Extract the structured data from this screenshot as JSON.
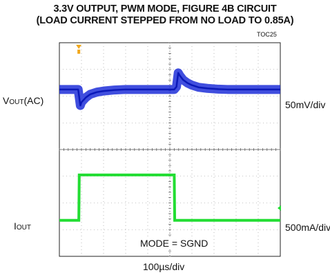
{
  "title_line1": "3.3V OUTPUT, PWM MODE, FIGURE 4B CIRCUIT",
  "title_line2": "(LOAD CURRENT STEPPED FROM NO LOAD TO 0.85A)",
  "toc_label": "TOC25",
  "left_labels": {
    "vout_main": "V",
    "vout_sub": "OUT",
    "vout_suffix": "(AC)",
    "iout_main": "I",
    "iout_sub": "OUT"
  },
  "right_labels": {
    "vout_scale": "50mV/div",
    "iout_scale": "500mA/div"
  },
  "time_scale": "100µs/div",
  "annotation": "MODE = SGND",
  "colors": {
    "trace_vout": "#1f2fd8",
    "trace_iout": "#22dd33",
    "grid": "#8a8a8a",
    "marker": "#f2a81d"
  },
  "chart_data": {
    "type": "line",
    "divisions": {
      "x": 10,
      "y": 8
    },
    "time_per_div_us": 100,
    "series": [
      {
        "name": "VOUT(AC)",
        "units": "mV",
        "per_div": 50,
        "points": [
          [
            0,
            0
          ],
          [
            0.85,
            0
          ],
          [
            0.9,
            -15
          ],
          [
            0.95,
            -30
          ],
          [
            1.0,
            -24
          ],
          [
            1.2,
            -15
          ],
          [
            1.4,
            -9
          ],
          [
            1.7,
            -5
          ],
          [
            2.0,
            -3
          ],
          [
            2.5,
            -1
          ],
          [
            3.0,
            0
          ],
          [
            5.2,
            0
          ],
          [
            5.3,
            5
          ],
          [
            5.38,
            31
          ],
          [
            5.45,
            26
          ],
          [
            5.6,
            18
          ],
          [
            5.8,
            12
          ],
          [
            6.0,
            8
          ],
          [
            6.3,
            4
          ],
          [
            6.7,
            2
          ],
          [
            7.2,
            0.5
          ],
          [
            7.6,
            0
          ],
          [
            10,
            0
          ]
        ]
      },
      {
        "name": "IOUT",
        "units": "A",
        "per_div": 0.5,
        "points": [
          [
            0,
            0
          ],
          [
            0.88,
            0
          ],
          [
            0.9,
            0.85
          ],
          [
            5.2,
            0.85
          ],
          [
            5.22,
            0
          ],
          [
            10,
            0
          ]
        ]
      }
    ]
  }
}
